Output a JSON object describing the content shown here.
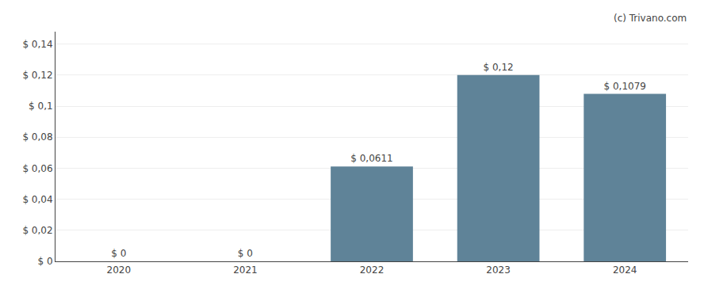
{
  "chart_data": {
    "type": "bar",
    "categories": [
      "2020",
      "2021",
      "2022",
      "2023",
      "2024"
    ],
    "values": [
      0,
      0,
      0.0611,
      0.12,
      0.1079
    ],
    "value_labels": [
      "$ 0",
      "$ 0",
      "$ 0,0611",
      "$ 0,12",
      "$ 0,1079"
    ],
    "data_labels": true,
    "color": "#5f8398",
    "ylim": [
      0,
      0.148
    ],
    "yticks": [
      {
        "value": 0,
        "label": "$ 0"
      },
      {
        "value": 0.02,
        "label": "$ 0,02"
      },
      {
        "value": 0.04,
        "label": "$ 0,04"
      },
      {
        "value": 0.06,
        "label": "$ 0,06"
      },
      {
        "value": 0.08,
        "label": "$ 0,08"
      },
      {
        "value": 0.1,
        "label": "$ 0,1"
      },
      {
        "value": 0.12,
        "label": "$ 0,12"
      },
      {
        "value": 0.14,
        "label": "$ 0,14"
      }
    ],
    "grid": true,
    "annotations": [
      "(c) Trivano.com"
    ]
  }
}
